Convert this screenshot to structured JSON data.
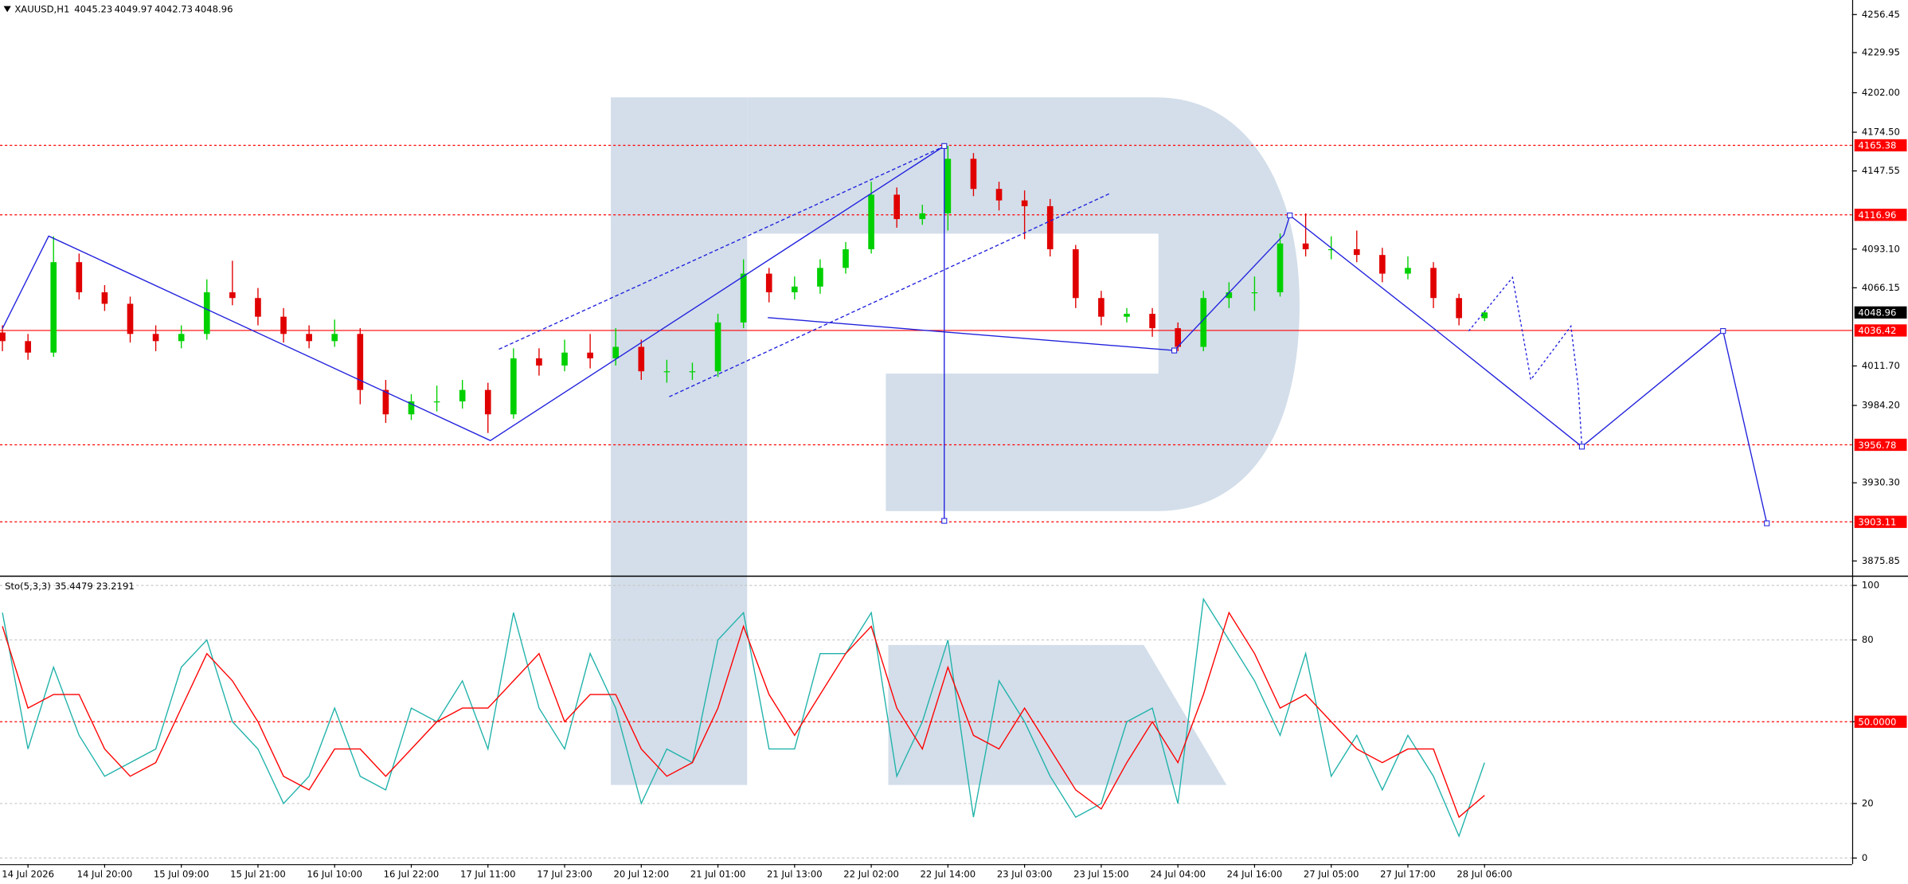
{
  "chart_data": [
    {
      "type": "candlestick",
      "title": "XAUUSD,H1",
      "header_values": [
        4045.23,
        4049.97,
        4042.73,
        4048.96
      ],
      "categories": [
        null,
        "14 Jul 2026",
        null,
        null,
        "14 Jul 20:00",
        null,
        null,
        "15 Jul 09:00",
        null,
        null,
        "15 Jul 21:00",
        null,
        null,
        "16 Jul 10:00",
        null,
        null,
        "16 Jul 22:00",
        null,
        null,
        "17 Jul 11:00",
        null,
        null,
        "17 Jul 23:00",
        null,
        null,
        "20 Jul 12:00",
        null,
        null,
        "21 Jul 01:00",
        null,
        null,
        "21 Jul 13:00",
        null,
        null,
        "22 Jul 02:00",
        null,
        null,
        "22 Jul 14:00",
        null,
        null,
        "23 Jul 03:00",
        null,
        null,
        "23 Jul 15:00",
        null,
        null,
        "24 Jul 04:00",
        null,
        null,
        "24 Jul 16:00",
        null,
        null,
        "27 Jul 05:00",
        null,
        null,
        "27 Jul 17:00",
        null,
        null,
        "28 Jul 06:00"
      ],
      "ohlc": [
        [
          4035,
          4040,
          4022,
          4029
        ],
        [
          4029,
          4034,
          4016,
          4021
        ],
        [
          4021,
          4102,
          4018,
          4084
        ],
        [
          4084,
          4090,
          4058,
          4063
        ],
        [
          4063,
          4068,
          4050,
          4055
        ],
        [
          4055,
          4060,
          4028,
          4034
        ],
        [
          4034,
          4040,
          4022,
          4029
        ],
        [
          4029,
          4040,
          4024,
          4034
        ],
        [
          4034,
          4072,
          4030,
          4063
        ],
        [
          4063,
          4085,
          4054,
          4059
        ],
        [
          4059,
          4066,
          4040,
          4046
        ],
        [
          4046,
          4052,
          4028,
          4034
        ],
        [
          4034,
          4040,
          4024,
          4029
        ],
        [
          4029,
          4044,
          4025,
          4034
        ],
        [
          4034,
          4038,
          3985,
          3995
        ],
        [
          3995,
          4002,
          3972,
          3978
        ],
        [
          3978,
          3992,
          3974,
          3987
        ],
        [
          3987,
          3998,
          3980,
          3987
        ],
        [
          3987,
          4002,
          3982,
          3995
        ],
        [
          3995,
          4000,
          3965,
          3978
        ],
        [
          3978,
          4024,
          3975,
          4017
        ],
        [
          4017,
          4024,
          4005,
          4012
        ],
        [
          4012,
          4030,
          4008,
          4021
        ],
        [
          4021,
          4034,
          4010,
          4017
        ],
        [
          4017,
          4038,
          4012,
          4025
        ],
        [
          4025,
          4030,
          4002,
          4008
        ],
        [
          4008,
          4016,
          4000,
          4008
        ],
        [
          4008,
          4014,
          4002,
          4008
        ],
        [
          4008,
          4048,
          4004,
          4042
        ],
        [
          4042,
          4086,
          4038,
          4076
        ],
        [
          4076,
          4080,
          4056,
          4063
        ],
        [
          4063,
          4074,
          4058,
          4067
        ],
        [
          4067,
          4086,
          4062,
          4080
        ],
        [
          4080,
          4098,
          4076,
          4093
        ],
        [
          4093,
          4140,
          4090,
          4131
        ],
        [
          4131,
          4136,
          4108,
          4114
        ],
        [
          4114,
          4124,
          4110,
          4118
        ],
        [
          4118,
          4165,
          4106,
          4156
        ],
        [
          4156,
          4160,
          4130,
          4135
        ],
        [
          4135,
          4140,
          4120,
          4127
        ],
        [
          4127,
          4134,
          4100,
          4123
        ],
        [
          4123,
          4128,
          4088,
          4093
        ],
        [
          4093,
          4096,
          4052,
          4059
        ],
        [
          4059,
          4064,
          4040,
          4046
        ],
        [
          4046,
          4052,
          4042,
          4048
        ],
        [
          4048,
          4052,
          4032,
          4038
        ],
        [
          4038,
          4042,
          4022,
          4025
        ],
        [
          4025,
          4064,
          4022,
          4059
        ],
        [
          4059,
          4070,
          4052,
          4063
        ],
        [
          4063,
          4074,
          4050,
          4063
        ],
        [
          4063,
          4104,
          4060,
          4097
        ],
        [
          4097,
          4118,
          4088,
          4093
        ],
        [
          4093,
          4102,
          4086,
          4093
        ],
        [
          4093,
          4106,
          4084,
          4089
        ],
        [
          4089,
          4094,
          4070,
          4076
        ],
        [
          4076,
          4088,
          4072,
          4080
        ],
        [
          4080,
          4084,
          4052,
          4059
        ],
        [
          4059,
          4062,
          4040,
          4045
        ],
        [
          4045,
          4050,
          4043,
          4049
        ]
      ],
      "up_color": "#00d000",
      "down_color": "#e00000",
      "ylim": [
        3866.5,
        4266.6
      ],
      "yticks": [
        {
          "value": 3875.85,
          "label": "3875.85"
        },
        {
          "value": 3930.3,
          "label": "3930.30"
        },
        {
          "value": 3984.2,
          "label": "3984.20"
        },
        {
          "value": 4011.7,
          "label": "4011.70"
        },
        {
          "value": 4066.15,
          "label": "4066.15"
        },
        {
          "value": 4093.1,
          "label": "4093.10"
        },
        {
          "value": 4147.55,
          "label": "4147.55"
        },
        {
          "value": 4174.5,
          "label": "4174.50"
        },
        {
          "value": 4202.0,
          "label": "4202.00"
        },
        {
          "value": 4229.95,
          "label": "4229.95"
        },
        {
          "value": 4256.45,
          "label": "4256.45"
        }
      ],
      "dotted_levels": [
        4165.38,
        4116.96,
        3956.78,
        3903.11
      ],
      "solid_levels": [
        4036.42
      ],
      "level_color": "#ff0000"
    },
    {
      "type": "line",
      "title": "Sto(5,3,3)",
      "header_values": [
        35.4479,
        23.2191
      ],
      "series": [
        {
          "color": "#20b2aa",
          "values": [
            90,
            40,
            70,
            45,
            30,
            35,
            40,
            70,
            80,
            50,
            40,
            20,
            30,
            55,
            30,
            25,
            55,
            50,
            65,
            40,
            90,
            55,
            40,
            75,
            55,
            20,
            40,
            35,
            80,
            90,
            40,
            40,
            75,
            75,
            90,
            30,
            50,
            80,
            15,
            65,
            50,
            30,
            15,
            20,
            50,
            55,
            20,
            95,
            80,
            65,
            45,
            75,
            30,
            45,
            25,
            45,
            30,
            8,
            35
          ]
        },
        {
          "color": "#ff0000",
          "values": [
            85,
            55,
            60,
            60,
            40,
            30,
            35,
            55,
            75,
            65,
            50,
            30,
            25,
            40,
            40,
            30,
            40,
            50,
            55,
            55,
            65,
            75,
            50,
            60,
            60,
            40,
            30,
            35,
            55,
            85,
            60,
            45,
            60,
            75,
            85,
            55,
            40,
            70,
            45,
            40,
            55,
            40,
            25,
            18,
            35,
            50,
            35,
            60,
            90,
            75,
            55,
            60,
            50,
            40,
            35,
            40,
            40,
            15,
            23
          ]
        }
      ],
      "ylim": [
        -2.2,
        102.7
      ],
      "yticks": [
        0,
        20,
        {
          "value": 50,
          "label": "50.0000"
        },
        80,
        100
      ],
      "highlight_tick": 50,
      "highlight_color": "#ff0000"
    }
  ]
}
